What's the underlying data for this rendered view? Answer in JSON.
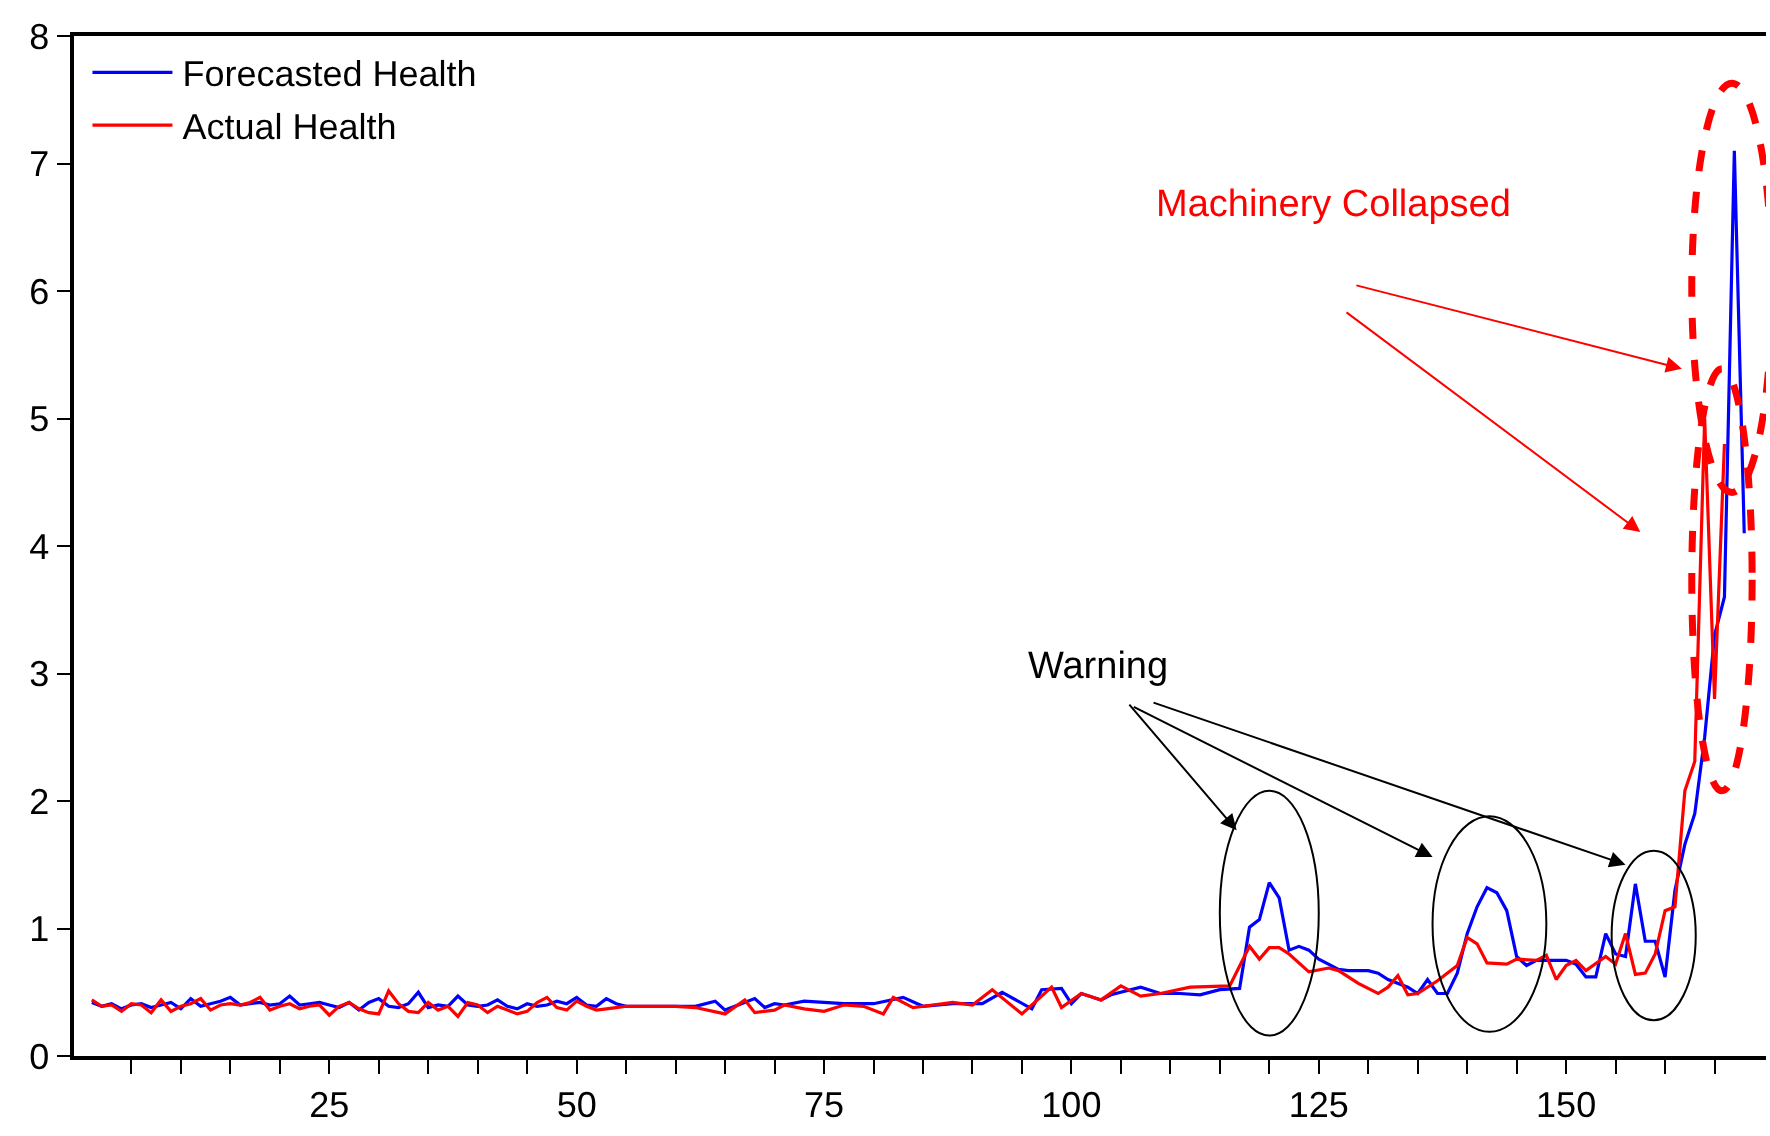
{
  "chart_data": {
    "type": "line",
    "series": [
      {
        "name": "Forecasted Health",
        "color": "#0000ff",
        "x": [
          1,
          2,
          3,
          4,
          5,
          6,
          7,
          8,
          9,
          10,
          11,
          12,
          13,
          14,
          15,
          16,
          17,
          18,
          19,
          20,
          21,
          22,
          23,
          24,
          25,
          26,
          27,
          28,
          29,
          30,
          31,
          32,
          33,
          34,
          35,
          36,
          37,
          38,
          39,
          40,
          41,
          42,
          43,
          44,
          45,
          46,
          47,
          48,
          49,
          50,
          51,
          52,
          53,
          54,
          55,
          56,
          57,
          60,
          62,
          64,
          65,
          68,
          69,
          70,
          71,
          73,
          77,
          80,
          83,
          85,
          88,
          91,
          93,
          96,
          97,
          99,
          100,
          101,
          103,
          104,
          107,
          109,
          111,
          113,
          115,
          117,
          118,
          119,
          120,
          121,
          122,
          123,
          124,
          125,
          127,
          128,
          130,
          131,
          132,
          134,
          135,
          136,
          137,
          138,
          139,
          140,
          141,
          142,
          143,
          144,
          145,
          146,
          147,
          148,
          150,
          151,
          152,
          153,
          154,
          155,
          156,
          157,
          158,
          159,
          160,
          161,
          162,
          163,
          164,
          165,
          166,
          167,
          168
        ],
        "values": [
          0.42,
          0.39,
          0.41,
          0.37,
          0.4,
          0.41,
          0.38,
          0.4,
          0.42,
          0.37,
          0.45,
          0.39,
          0.41,
          0.43,
          0.46,
          0.4,
          0.41,
          0.42,
          0.4,
          0.41,
          0.47,
          0.4,
          0.41,
          0.42,
          0.4,
          0.38,
          0.42,
          0.36,
          0.42,
          0.45,
          0.39,
          0.38,
          0.41,
          0.5,
          0.38,
          0.4,
          0.39,
          0.47,
          0.4,
          0.39,
          0.4,
          0.44,
          0.39,
          0.37,
          0.41,
          0.39,
          0.4,
          0.43,
          0.41,
          0.46,
          0.4,
          0.39,
          0.45,
          0.41,
          0.39,
          0.39,
          0.39,
          0.39,
          0.39,
          0.43,
          0.36,
          0.45,
          0.38,
          0.41,
          0.4,
          0.43,
          0.41,
          0.41,
          0.46,
          0.39,
          0.41,
          0.41,
          0.5,
          0.37,
          0.52,
          0.53,
          0.41,
          0.49,
          0.44,
          0.48,
          0.54,
          0.49,
          0.49,
          0.48,
          0.52,
          0.53,
          1.01,
          1.07,
          1.36,
          1.24,
          0.83,
          0.86,
          0.83,
          0.76,
          0.68,
          0.67,
          0.67,
          0.65,
          0.6,
          0.54,
          0.49,
          0.6,
          0.49,
          0.49,
          0.65,
          0.96,
          1.17,
          1.32,
          1.28,
          1.14,
          0.78,
          0.71,
          0.75,
          0.75,
          0.75,
          0.72,
          0.62,
          0.62,
          0.96,
          0.8,
          0.78,
          1.35,
          0.9,
          0.9,
          0.62,
          1.3,
          1.66,
          1.9,
          2.5,
          3.3,
          3.6,
          7.1,
          4.1
        ]
      },
      {
        "name": "Actual Health",
        "color": "#ff0000",
        "x": [
          1,
          2,
          3,
          4,
          5,
          6,
          7,
          8,
          9,
          10,
          11,
          12,
          13,
          14,
          15,
          16,
          17,
          18,
          19,
          20,
          21,
          22,
          23,
          24,
          25,
          26,
          27,
          28,
          29,
          30,
          31,
          32,
          33,
          34,
          35,
          36,
          37,
          38,
          39,
          40,
          41,
          42,
          43,
          44,
          45,
          46,
          47,
          48,
          49,
          50,
          51,
          52,
          53,
          54,
          55,
          56,
          57,
          60,
          62,
          65,
          67,
          68,
          70,
          71,
          73,
          75,
          77,
          79,
          81,
          82,
          84,
          86,
          88,
          90,
          92,
          95,
          98,
          99,
          101,
          103,
          105,
          107,
          109,
          112,
          116,
          118,
          119,
          120,
          121,
          122,
          124,
          126,
          127,
          129,
          131,
          132,
          133,
          134,
          135,
          137,
          139,
          140,
          141,
          142,
          144,
          145,
          147,
          148,
          149,
          150,
          151,
          152,
          154,
          155,
          156,
          157,
          158,
          159,
          160,
          161,
          162,
          163,
          164,
          165,
          166
        ],
        "values": [
          0.44,
          0.39,
          0.4,
          0.35,
          0.41,
          0.4,
          0.34,
          0.44,
          0.35,
          0.39,
          0.41,
          0.45,
          0.36,
          0.4,
          0.41,
          0.4,
          0.42,
          0.46,
          0.36,
          0.39,
          0.41,
          0.37,
          0.39,
          0.4,
          0.32,
          0.39,
          0.42,
          0.37,
          0.34,
          0.33,
          0.51,
          0.41,
          0.35,
          0.34,
          0.42,
          0.36,
          0.39,
          0.31,
          0.42,
          0.4,
          0.34,
          0.39,
          0.36,
          0.33,
          0.35,
          0.42,
          0.46,
          0.38,
          0.36,
          0.43,
          0.39,
          0.36,
          0.37,
          0.38,
          0.39,
          0.39,
          0.39,
          0.39,
          0.38,
          0.33,
          0.44,
          0.34,
          0.36,
          0.4,
          0.37,
          0.35,
          0.4,
          0.39,
          0.33,
          0.46,
          0.38,
          0.4,
          0.42,
          0.4,
          0.52,
          0.33,
          0.54,
          0.38,
          0.49,
          0.44,
          0.55,
          0.47,
          0.49,
          0.54,
          0.55,
          0.86,
          0.76,
          0.85,
          0.85,
          0.8,
          0.66,
          0.69,
          0.67,
          0.57,
          0.49,
          0.54,
          0.63,
          0.48,
          0.49,
          0.59,
          0.71,
          0.93,
          0.88,
          0.73,
          0.72,
          0.76,
          0.75,
          0.79,
          0.6,
          0.71,
          0.75,
          0.67,
          0.78,
          0.72,
          0.96,
          0.64,
          0.65,
          0.8,
          1.14,
          1.17,
          2.08,
          2.31,
          5.0,
          2.8,
          4.8
        ]
      }
    ],
    "xlim": [
      -0.8,
      170.2
    ],
    "ylim": [
      0,
      8
    ],
    "xticks": [
      {
        "value": 5,
        "label": null
      },
      {
        "value": 10,
        "label": null
      },
      {
        "value": 15,
        "label": null
      },
      {
        "value": 20,
        "label": null
      },
      25,
      {
        "value": 30,
        "label": null
      },
      {
        "value": 35,
        "label": null
      },
      {
        "value": 40,
        "label": null
      },
      {
        "value": 45,
        "label": null
      },
      50,
      {
        "value": 55,
        "label": null
      },
      {
        "value": 60,
        "label": null
      },
      {
        "value": 65,
        "label": null
      },
      {
        "value": 70,
        "label": null
      },
      75,
      {
        "value": 80,
        "label": null
      },
      {
        "value": 85,
        "label": null
      },
      {
        "value": 90,
        "label": null
      },
      {
        "value": 95,
        "label": null
      },
      100,
      {
        "value": 105,
        "label": null
      },
      {
        "value": 110,
        "label": null
      },
      {
        "value": 115,
        "label": null
      },
      {
        "value": 120,
        "label": null
      },
      125,
      {
        "value": 130,
        "label": null
      },
      {
        "value": 135,
        "label": null
      },
      {
        "value": 140,
        "label": null
      },
      {
        "value": 145,
        "label": null
      },
      150,
      {
        "value": 155,
        "label": null
      },
      {
        "value": 160,
        "label": null
      },
      {
        "value": 165,
        "label": null
      }
    ],
    "yticks": [
      0,
      1,
      2,
      3,
      4,
      5,
      6,
      7,
      8
    ],
    "annotations": [
      "Warning",
      "Machinery Collapsed"
    ],
    "legend": "top left",
    "marker": "none",
    "line_style": "solid"
  }
}
